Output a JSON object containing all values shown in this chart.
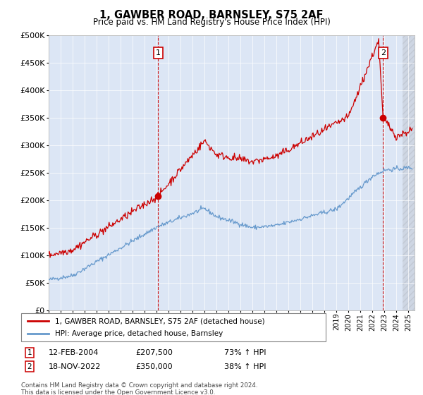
{
  "title": "1, GAWBER ROAD, BARNSLEY, S75 2AF",
  "subtitle": "Price paid vs. HM Land Registry's House Price Index (HPI)",
  "legend_house": "1, GAWBER ROAD, BARNSLEY, S75 2AF (detached house)",
  "legend_hpi": "HPI: Average price, detached house, Barnsley",
  "sale1_date": "12-FEB-2004",
  "sale1_price": "£207,500",
  "sale1_pct": "73% ↑ HPI",
  "sale1_year": 2004.12,
  "sale1_value": 207500,
  "sale2_date": "18-NOV-2022",
  "sale2_price": "£350,000",
  "sale2_pct": "38% ↑ HPI",
  "sale2_year": 2022.88,
  "sale2_value": 350000,
  "ylim": [
    0,
    500000
  ],
  "yticks": [
    0,
    50000,
    100000,
    150000,
    200000,
    250000,
    300000,
    350000,
    400000,
    450000,
    500000
  ],
  "xlim_left": 1995.0,
  "xlim_right": 2025.5,
  "plot_bg_color": "#dce6f5",
  "line_color_house": "#cc0000",
  "line_color_hpi": "#6699cc",
  "footer": "Contains HM Land Registry data © Crown copyright and database right 2024.\nThis data is licensed under the Open Government Licence v3.0."
}
